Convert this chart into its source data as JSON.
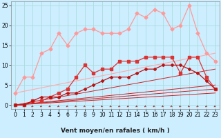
{
  "background_color": "#cceeff",
  "grid_color": "#aadddd",
  "xlabel": "Vent moyen/en rafales ( km/h )",
  "xlim": [
    -0.5,
    23.5
  ],
  "ylim": [
    -1,
    26
  ],
  "yticks": [
    0,
    5,
    10,
    15,
    20,
    25
  ],
  "xticks": [
    0,
    1,
    2,
    3,
    4,
    5,
    6,
    7,
    8,
    9,
    10,
    11,
    12,
    13,
    14,
    15,
    16,
    17,
    18,
    19,
    20,
    21,
    22,
    23
  ],
  "series": [
    {
      "color": "#ff9999",
      "linewidth": 0.9,
      "marker": "D",
      "markersize": 2.5,
      "x": [
        0,
        1,
        2,
        3,
        4,
        5,
        6,
        7,
        8,
        9,
        10,
        11,
        12,
        13,
        14,
        15,
        16,
        17,
        18,
        19,
        20,
        21,
        22,
        23
      ],
      "y": [
        3,
        7,
        7,
        13,
        14,
        18,
        15,
        18,
        19,
        19,
        18,
        18,
        18,
        19,
        23,
        22,
        24,
        23,
        19,
        20,
        25,
        18,
        13,
        11
      ]
    },
    {
      "color": "#ffaaaa",
      "linewidth": 0.8,
      "marker": null,
      "x": [
        0,
        23
      ],
      "y": [
        3,
        13
      ]
    },
    {
      "color": "#dd3333",
      "linewidth": 0.9,
      "marker": "s",
      "markersize": 2.5,
      "x": [
        0,
        1,
        2,
        3,
        4,
        5,
        6,
        7,
        8,
        9,
        10,
        11,
        12,
        13,
        14,
        15,
        16,
        17,
        18,
        19,
        20,
        21,
        22,
        23
      ],
      "y": [
        0,
        0,
        1,
        1,
        2,
        3,
        4,
        7,
        10,
        8,
        9,
        9,
        11,
        11,
        11,
        12,
        12,
        12,
        12,
        8,
        12,
        12,
        7,
        4
      ]
    },
    {
      "color": "#cc2222",
      "linewidth": 0.7,
      "marker": null,
      "x": [
        0,
        23
      ],
      "y": [
        0,
        9
      ]
    },
    {
      "color": "#cc2222",
      "linewidth": 0.7,
      "marker": null,
      "x": [
        0,
        23
      ],
      "y": [
        0,
        5
      ]
    },
    {
      "color": "#cc2222",
      "linewidth": 0.7,
      "marker": null,
      "x": [
        0,
        23
      ],
      "y": [
        0,
        4
      ]
    },
    {
      "color": "#cc2222",
      "linewidth": 0.7,
      "marker": null,
      "x": [
        0,
        23
      ],
      "y": [
        0,
        3
      ]
    },
    {
      "color": "#bb1111",
      "linewidth": 0.9,
      "marker": "P",
      "markersize": 2.5,
      "x": [
        0,
        1,
        2,
        3,
        4,
        5,
        6,
        7,
        8,
        9,
        10,
        11,
        12,
        13,
        14,
        15,
        16,
        17,
        18,
        19,
        20,
        21,
        22,
        23
      ],
      "y": [
        0,
        0,
        1,
        2,
        2,
        2,
        3,
        3,
        4,
        5,
        6,
        7,
        7,
        7,
        8,
        9,
        9,
        10,
        10,
        10,
        9,
        8,
        6,
        4
      ]
    }
  ],
  "arrow_color": "#993333",
  "axis_fontsize": 6.5,
  "tick_fontsize": 5.5
}
